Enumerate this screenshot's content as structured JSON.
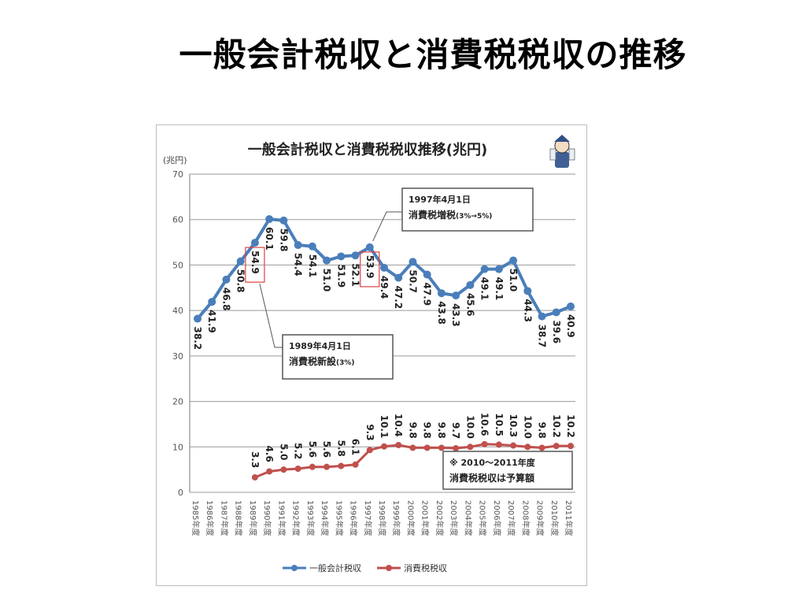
{
  "slide": {
    "title": "一般会計税収と消費税税収の推移"
  },
  "chart_data": {
    "type": "line",
    "title": "一般会計税収と消費税税収推移(兆円)",
    "ylabel": "(兆円)",
    "ylim": [
      0,
      70
    ],
    "yticks": [
      0,
      10,
      20,
      30,
      40,
      50,
      60,
      70
    ],
    "grid": true,
    "legend_position": "bottom",
    "categories": [
      "1985年度",
      "1986年度",
      "1987年度",
      "1988年度",
      "1989年度",
      "1990年度",
      "1991年度",
      "1992年度",
      "1993年度",
      "1994年度",
      "1995年度",
      "1996年度",
      "1997年度",
      "1998年度",
      "1999年度",
      "2000年度",
      "2001年度",
      "2002年度",
      "2003年度",
      "2004年度",
      "2005年度",
      "2006年度",
      "2007年度",
      "2008年度",
      "2009年度",
      "2010年度",
      "2011年度"
    ],
    "series": [
      {
        "name": "一般会計税収",
        "color": "#4a7ebb",
        "values": [
          38.2,
          41.9,
          46.8,
          50.8,
          54.9,
          60.1,
          59.8,
          54.4,
          54.1,
          51.0,
          51.9,
          52.1,
          53.9,
          49.4,
          47.2,
          50.7,
          47.9,
          43.8,
          43.3,
          45.6,
          49.1,
          49.1,
          51.0,
          44.3,
          38.7,
          39.6,
          40.9
        ],
        "labels": [
          "38.2",
          "41.9",
          "46.8",
          "50.8",
          "54.9",
          "60.1",
          "59.8",
          "54.4",
          "54.1",
          "51.0",
          "51.9",
          "52.1",
          "53.9",
          "49.4",
          "47.2",
          "50.7",
          "47.9",
          "43.8",
          "43.3",
          "45.6",
          "49.1",
          "49.1",
          "51.0",
          "44.3",
          "38.7",
          "39.6",
          "40.9"
        ]
      },
      {
        "name": "消費税税収",
        "color": "#c0504d",
        "values": [
          null,
          null,
          null,
          null,
          3.3,
          4.6,
          5.0,
          5.2,
          5.6,
          5.6,
          5.8,
          6.1,
          9.3,
          10.1,
          10.4,
          9.8,
          9.8,
          9.8,
          9.7,
          10.0,
          10.6,
          10.5,
          10.3,
          10.0,
          9.8,
          10.2,
          10.2
        ],
        "labels": [
          "",
          "",
          "",
          "",
          "3.3",
          "4.6",
          "5.0",
          "5.2",
          "5.6",
          "5.6",
          "5.8",
          "6.1",
          "9.3",
          "10.1",
          "10.4",
          "9.8",
          "9.8",
          "9.8",
          "9.7",
          "10.0",
          "10.6",
          "10.5",
          "10.3",
          "10.0",
          "9.8",
          "10.2",
          "10.2"
        ]
      }
    ],
    "highlighted_points": [
      "1989年度",
      "1997年度"
    ],
    "annotations": [
      {
        "line1": "1997年4月1日",
        "line2_main": "消費税増税",
        "line2_small": "(3%→5%)"
      },
      {
        "line1": "1989年4月1日",
        "line2_main": "消費税新設",
        "line2_small": "(3%)"
      },
      {
        "line1": "※ 2010～2011年度",
        "line2_main": "消費税税収は予算額",
        "line2_small": ""
      }
    ],
    "icon": "mascot-character-icon"
  }
}
